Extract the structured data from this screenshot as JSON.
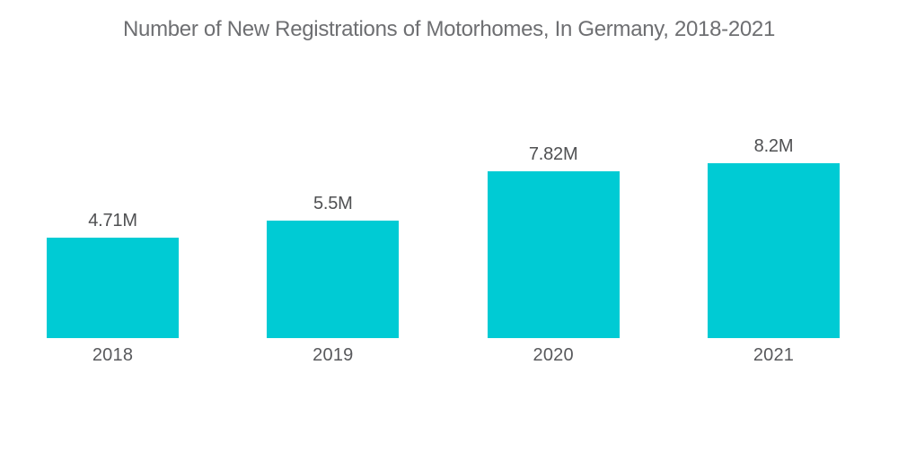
{
  "header": {
    "title": "Number of New Registrations of Motorhomes, In Germany, 2018-2021"
  },
  "colors": {
    "bar": "#00cbd4",
    "title_text": "#6e6f72",
    "value_label_text": "#4f5052",
    "axis_label_text": "#58595c",
    "background": "#ffffff"
  },
  "chart_data": {
    "type": "bar",
    "title": "Number of New Registrations of Motorhomes, In Germany, 2018-2021",
    "categories": [
      "2018",
      "2019",
      "2020",
      "2021"
    ],
    "values": [
      4.71,
      5.5,
      7.82,
      8.2
    ],
    "value_labels": [
      "4.71M",
      "5.5M",
      "7.82M",
      "8.2M"
    ],
    "unit": "M",
    "xlabel": "",
    "ylabel": "",
    "ylim": [
      0,
      8.2
    ],
    "grid": false,
    "legend": false,
    "axes_visible": false,
    "bar_label_position": "above",
    "orientation": "vertical"
  }
}
